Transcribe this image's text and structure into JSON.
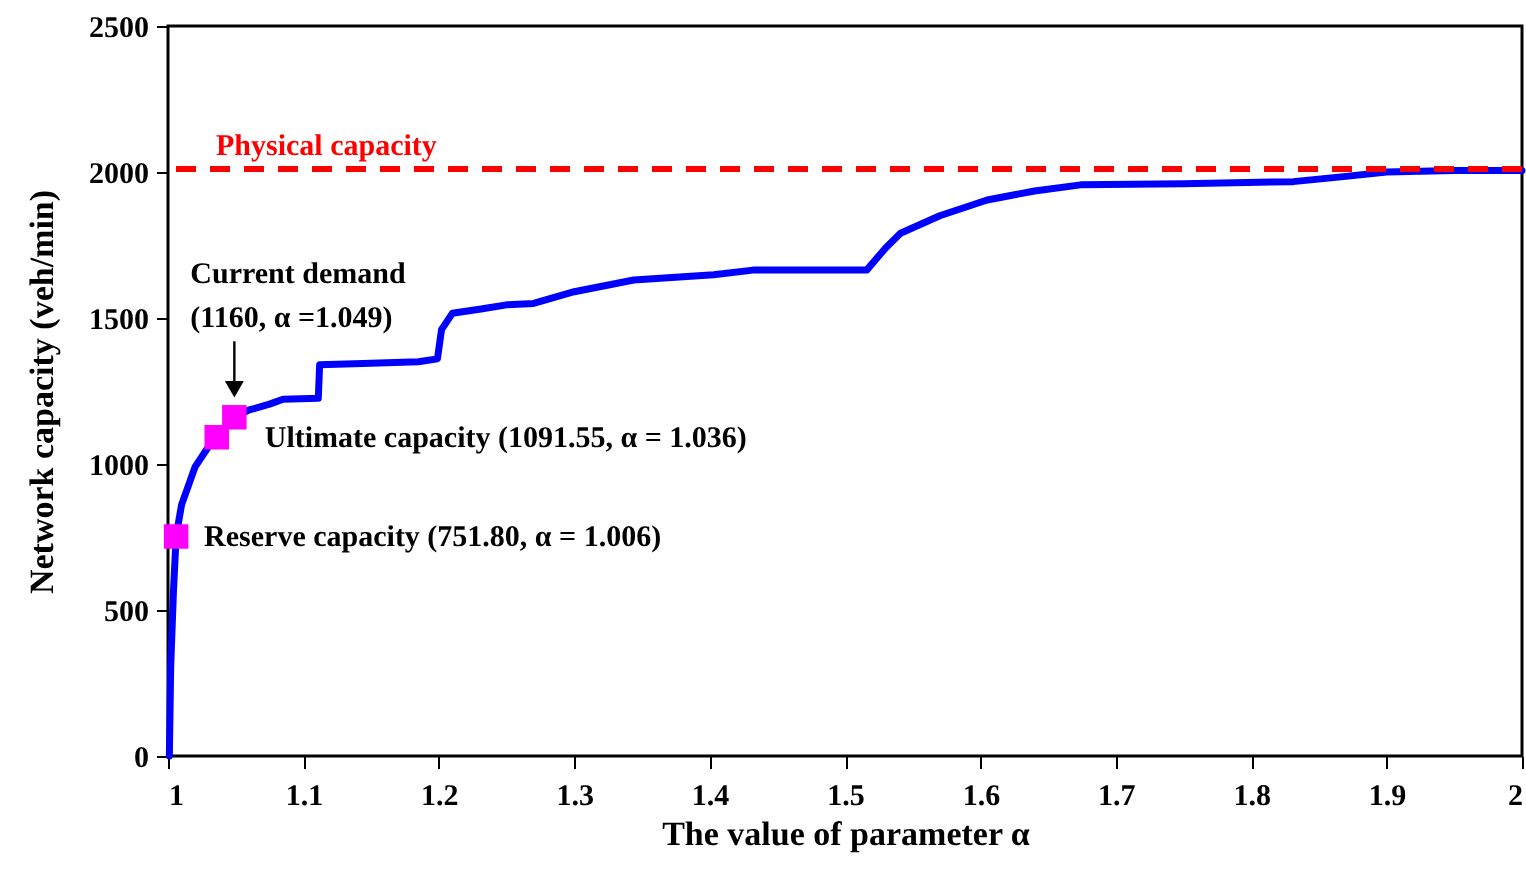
{
  "chart_data": {
    "type": "line",
    "xlabel": "The value of parameter α",
    "ylabel": "Network capacity (veh/min)",
    "xlim": [
      1,
      2
    ],
    "ylim": [
      0,
      2500
    ],
    "xticks": [
      1,
      1.1,
      1.2,
      1.3,
      1.4,
      1.5,
      1.6,
      1.7,
      1.8,
      1.9,
      2
    ],
    "yticks": [
      0,
      500,
      1000,
      1500,
      2000,
      2500
    ],
    "grid": false,
    "series": [
      {
        "color": "#0000ff",
        "line_style": "solid",
        "marker": "none",
        "x": [
          1.001,
          1.002,
          1.004,
          1.006,
          1.01,
          1.02,
          1.03,
          1.036,
          1.049,
          1.06,
          1.075,
          1.085,
          1.111,
          1.112,
          1.15,
          1.185,
          1.199,
          1.202,
          1.21,
          1.23,
          1.25,
          1.27,
          1.3,
          1.344,
          1.403,
          1.432,
          1.47,
          1.516,
          1.53,
          1.541,
          1.57,
          1.605,
          1.64,
          1.674,
          1.75,
          1.831,
          1.87,
          1.9,
          1.95,
          2
        ],
        "values": [
          0,
          308,
          560,
          752,
          860,
          990,
          1060,
          1092,
          1160,
          1185,
          1205,
          1222,
          1225,
          1340,
          1345,
          1350,
          1360,
          1460,
          1516,
          1530,
          1545,
          1550,
          1590,
          1630,
          1648,
          1664,
          1664,
          1664,
          1740,
          1790,
          1850,
          1904,
          1935,
          1956,
          1960,
          1967,
          1985,
          2000,
          2005,
          2005
        ]
      },
      {
        "type": "scatter",
        "color": "#ff00ff",
        "marker": "square",
        "x": [
          1.006,
          1.036,
          1.049
        ],
        "values": [
          751.8,
          1091.55,
          1160
        ]
      }
    ],
    "ref_lines": [
      {
        "axis": "y",
        "value": 2010,
        "label": "Physical capacity",
        "color": "#ff0000",
        "line_style": "dashed"
      }
    ],
    "annotations": [
      {
        "text": "Current demand\n(1160, α =1.049)",
        "x": 1.049,
        "y": 1160
      },
      {
        "text": "Ultimate capacity (1091.55, α = 1.036)",
        "x": 1.036,
        "y": 1091.55
      },
      {
        "text": "Reserve capacity (751.80, α = 1.006)",
        "x": 1.006,
        "y": 751.8
      }
    ]
  }
}
